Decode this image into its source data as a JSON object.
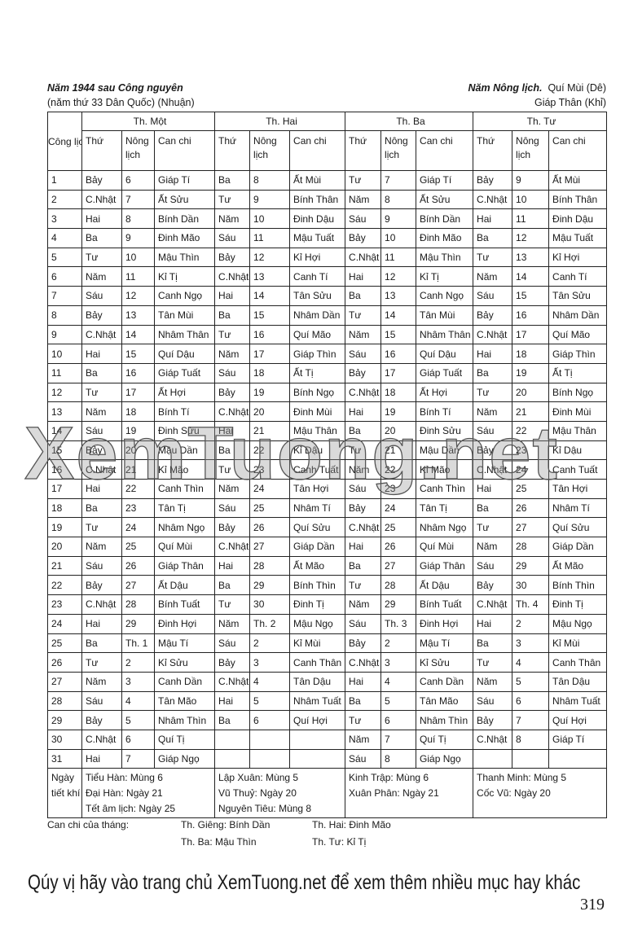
{
  "header": {
    "left_title": "Năm 1944 sau Công nguyên",
    "left_sub": "(năm thứ  33 Dân Quốc) (Nhuận)",
    "right_label": "Năm Nông lịch.",
    "right_year1": "Quí Mùi (Dê)",
    "right_year2": "Giáp Thân (Khỉ)"
  },
  "table": {
    "cong_lich": "Công lịch",
    "months": [
      "Th. Một",
      "Th. Hai",
      "Th. Ba",
      "Th. Tư"
    ],
    "sub_headers": [
      "Thứ",
      "Nông lịch",
      "Can chi"
    ],
    "rows": [
      [
        "1",
        "Bảy",
        "6",
        "Giáp Tí",
        "Ba",
        "8",
        "Ất Mùi",
        "Tư",
        "7",
        "Giáp Tí",
        "Bảy",
        "9",
        "Ất Mùi"
      ],
      [
        "2",
        "C.Nhật",
        "7",
        "Ất Sửu",
        "Tư",
        "9",
        "Bính Thân",
        "Năm",
        "8",
        "Ất Sửu",
        "C.Nhật",
        "10",
        "Bính Thân"
      ],
      [
        "3",
        "Hai",
        "8",
        "Bính Dần",
        "Năm",
        "10",
        "Đinh Dậu",
        "Sáu",
        "9",
        "Bính Dần",
        "Hai",
        "11",
        "Đinh Dậu"
      ],
      [
        "4",
        "Ba",
        "9",
        "Đinh Mão",
        "Sáu",
        "11",
        "Mậu Tuất",
        "Bảy",
        "10",
        "Đinh Mão",
        "Ba",
        "12",
        "Mậu Tuất"
      ],
      [
        "5",
        "Tư",
        "10",
        "Mậu Thìn",
        "Bảy",
        "12",
        "Kỉ Hợi",
        "C.Nhật",
        "11",
        "Mậu Thìn",
        "Tư",
        "13",
        "Kỉ Hợi"
      ],
      [
        "6",
        "Năm",
        "11",
        "Kỉ Tị",
        "C.Nhật",
        "13",
        "Canh Tí",
        "Hai",
        "12",
        "Kỉ Tị",
        "Năm",
        "14",
        "Canh Tí"
      ],
      [
        "7",
        "Sáu",
        "12",
        "Canh Ngọ",
        "Hai",
        "14",
        "Tân Sửu",
        "Ba",
        "13",
        "Canh Ngọ",
        "Sáu",
        "15",
        "Tân Sửu"
      ],
      [
        "8",
        "Bảy",
        "13",
        "Tân Mùi",
        "Ba",
        "15",
        "Nhâm Dần",
        "Tư",
        "14",
        "Tân Mùi",
        "Bảy",
        "16",
        "Nhâm Dần"
      ],
      [
        "9",
        "C.Nhật",
        "14",
        "Nhâm Thân",
        "Tư",
        "16",
        "Quí Mão",
        "Năm",
        "15",
        "Nhâm Thân",
        "C.Nhật",
        "17",
        "Quí Mão"
      ],
      [
        "10",
        "Hai",
        "15",
        "Quí Dậu",
        "Năm",
        "17",
        "Giáp Thìn",
        "Sáu",
        "16",
        "Quí Dậu",
        "Hai",
        "18",
        "Giáp Thìn"
      ],
      [
        "11",
        "Ba",
        "16",
        "Giáp Tuất",
        "Sáu",
        "18",
        "Ất Tị",
        "Bảy",
        "17",
        "Giáp Tuất",
        "Ba",
        "19",
        "Ất Tị"
      ],
      [
        "12",
        "Tư",
        "17",
        "Ất Hợi",
        "Bảy",
        "19",
        "Bính Ngọ",
        "C.Nhật",
        "18",
        "Ất Hợi",
        "Tư",
        "20",
        "Bính Ngọ"
      ],
      [
        "13",
        "Năm",
        "18",
        "Bính Tí",
        "C.Nhật",
        "20",
        "Đinh Mùi",
        "Hai",
        "19",
        "Bính Tí",
        "Năm",
        "21",
        "Đinh Mùi"
      ],
      [
        "14",
        "Sáu",
        "19",
        "Đinh Sửu",
        "Hai",
        "21",
        "Mậu Thân",
        "Ba",
        "20",
        "Đinh Sửu",
        "Sáu",
        "22",
        "Mậu Thân"
      ],
      [
        "15",
        "Bảy",
        "20",
        "Mậu Dần",
        "Ba",
        "22",
        "Kỉ Dậu",
        "Tư",
        "21",
        "Mậu Dần",
        "Bảy",
        "23",
        "Kỉ Dậu"
      ],
      [
        "16",
        "C.Nhật",
        "21",
        "Kỉ Mão",
        "Tư",
        "23",
        "Canh Tuất",
        "Năm",
        "22",
        "Kỉ Mão",
        "C.Nhật",
        "24",
        "Canh Tuất"
      ],
      [
        "17",
        "Hai",
        "22",
        "Canh Thìn",
        "Năm",
        "24",
        "Tân Hợi",
        "Sáu",
        "23",
        "Canh Thìn",
        "Hai",
        "25",
        "Tân Hợi"
      ],
      [
        "18",
        "Ba",
        "23",
        "Tân Tị",
        "Sáu",
        "25",
        "Nhâm Tí",
        "Bảy",
        "24",
        "Tân Tị",
        "Ba",
        "26",
        "Nhâm Tí"
      ],
      [
        "19",
        "Tư",
        "24",
        "Nhâm Ngọ",
        "Bảy",
        "26",
        "Quí Sửu",
        "C.Nhật",
        "25",
        "Nhâm Ngọ",
        "Tư",
        "27",
        "Quí Sửu"
      ],
      [
        "20",
        "Năm",
        "25",
        "Quí Mùi",
        "C.Nhật",
        "27",
        "Giáp Dần",
        "Hai",
        "26",
        "Quí Mùi",
        "Năm",
        "28",
        "Giáp Dần"
      ],
      [
        "21",
        "Sáu",
        "26",
        "Giáp Thân",
        "Hai",
        "28",
        "Ất Mão",
        "Ba",
        "27",
        "Giáp Thân",
        "Sáu",
        "29",
        "Ất Mão"
      ],
      [
        "22",
        "Bảy",
        "27",
        "Ất Dậu",
        "Ba",
        "29",
        "Bính Thìn",
        "Tư",
        "28",
        "Ất Dậu",
        "Bảy",
        "30",
        "Bính Thìn"
      ],
      [
        "23",
        "C.Nhật",
        "28",
        "Bính Tuất",
        "Tư",
        "30",
        "Đinh Tị",
        "Năm",
        "29",
        "Bính Tuất",
        "C.Nhật",
        "Th.  4",
        "Đinh Tị"
      ],
      [
        "24",
        "Hai",
        "29",
        "Đinh Hợi",
        "Năm",
        "Th.  2",
        "Mậu Ngọ",
        "Sáu",
        "Th.  3",
        "Đinh Hợi",
        "Hai",
        "2",
        "Mậu Ngọ"
      ],
      [
        "25",
        "Ba",
        "Th.  1",
        "Mậu Tí",
        "Sáu",
        "2",
        "Kỉ Mùi",
        "Bảy",
        "2",
        "Mậu Tí",
        "Ba",
        "3",
        "Kỉ Mùi"
      ],
      [
        "26",
        "Tư",
        "2",
        "Kỉ Sửu",
        "Bảy",
        "3",
        "Canh Thân",
        "C.Nhật",
        "3",
        "Kỉ Sửu",
        "Tư",
        "4",
        "Canh Thân"
      ],
      [
        "27",
        "Năm",
        "3",
        "Canh Dần",
        "C.Nhật",
        "4",
        "Tân Dậu",
        "Hai",
        "4",
        "Canh Dần",
        "Năm",
        "5",
        "Tân Dậu"
      ],
      [
        "28",
        "Sáu",
        "4",
        "Tân Mão",
        "Hai",
        "5",
        "Nhâm Tuất",
        "Ba",
        "5",
        "Tân Mão",
        "Sáu",
        "6",
        "Nhâm Tuất"
      ],
      [
        "29",
        "Bảy",
        "5",
        "Nhâm Thìn",
        "Ba",
        "6",
        "Quí Hợi",
        "Tư",
        "6",
        "Nhâm Thìn",
        "Bảy",
        "7",
        "Quí Hợi"
      ],
      [
        "30",
        "C.Nhật",
        "6",
        "Quí Tị",
        "",
        "",
        "",
        "Năm",
        "7",
        "Quí Tị",
        "C.Nhật",
        "8",
        "Giáp Tí"
      ],
      [
        "31",
        "Hai",
        "7",
        "Giáp Ngọ",
        "",
        "",
        "",
        "Sáu",
        "8",
        "Giáp Ngọ",
        "",
        "",
        ""
      ]
    ],
    "tiet_khi_label": "Ngày tiết khí",
    "tiet_khi": [
      [
        "Tiểu Hàn: Mùng 6",
        "Đại Hàn: Ngày 21",
        "Tết âm lịch: Ngày 25"
      ],
      [
        "Lập Xuân: Mùng 5",
        "Vũ Thuỷ: Ngày 20",
        "Nguyên Tiêu: Mùng 8"
      ],
      [
        "Kinh Trập: Mùng 6",
        "Xuân Phân: Ngày 21"
      ],
      [
        "Thanh Minh: Mùng 5",
        "Cốc Vũ: Ngày 20"
      ]
    ]
  },
  "footer": {
    "can_chi_label": "Can chi của tháng:",
    "items": [
      "Th. Giêng: Bính Dần",
      "Th. Hai: Đinh  Mão",
      "Th. Ba: Mậu Thìn",
      "Th. Tư: Kỉ Tị"
    ]
  },
  "watermark": "XemTuong.net",
  "banner": "Qúy vị hãy vào trang chủ XemTuong.net để xem thêm nhiều mục hay khác",
  "page_number": "319"
}
